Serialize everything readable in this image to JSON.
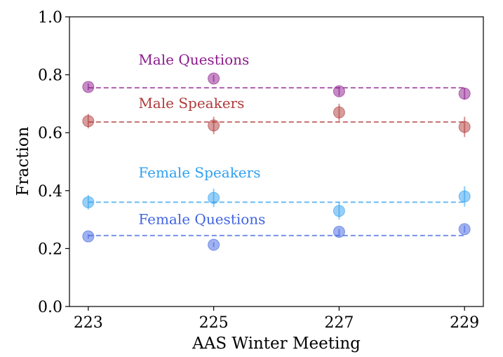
{
  "chart_data": {
    "type": "scatter",
    "xlabel": "AAS Winter Meeting",
    "ylabel": "Fraction",
    "x_ticks": [
      "223",
      "225",
      "227",
      "229"
    ],
    "y_ticks": [
      "0.0",
      "0.2",
      "0.4",
      "0.6",
      "0.8",
      "1.0"
    ],
    "xlim": [
      222.7,
      229.3
    ],
    "ylim": [
      0.0,
      1.0
    ],
    "grid": false,
    "legend": "none",
    "x": [
      223,
      225,
      227,
      229
    ],
    "series": [
      {
        "name": "Male Questions",
        "color": "#8b1a8b",
        "values": [
          0.758,
          0.787,
          0.743,
          0.735
        ],
        "errors": [
          0.012,
          0.012,
          0.015,
          0.02
        ],
        "mean": 0.755
      },
      {
        "name": "Male Speakers",
        "color": "#b03a3a",
        "values": [
          0.64,
          0.625,
          0.67,
          0.62
        ],
        "errors": [
          0.025,
          0.03,
          0.03,
          0.035
        ],
        "mean": 0.637
      },
      {
        "name": "Female Speakers",
        "color": "#2fa0f0",
        "values": [
          0.36,
          0.375,
          0.33,
          0.38
        ],
        "errors": [
          0.025,
          0.032,
          0.03,
          0.035
        ],
        "mean": 0.36
      },
      {
        "name": "Female Questions",
        "color": "#3f63e0",
        "values": [
          0.242,
          0.213,
          0.258,
          0.267
        ],
        "errors": [
          0.008,
          0.008,
          0.01,
          0.012
        ],
        "mean": 0.245
      }
    ],
    "annotations": [
      {
        "text": "Male Questions",
        "series": 0,
        "x": 223.8,
        "y": 0.835
      },
      {
        "text": "Male Speakers",
        "series": 1,
        "x": 223.8,
        "y": 0.685
      },
      {
        "text": "Female Speakers",
        "series": 2,
        "x": 223.8,
        "y": 0.445
      },
      {
        "text": "Female Questions",
        "series": 3,
        "x": 223.8,
        "y": 0.285
      }
    ]
  }
}
